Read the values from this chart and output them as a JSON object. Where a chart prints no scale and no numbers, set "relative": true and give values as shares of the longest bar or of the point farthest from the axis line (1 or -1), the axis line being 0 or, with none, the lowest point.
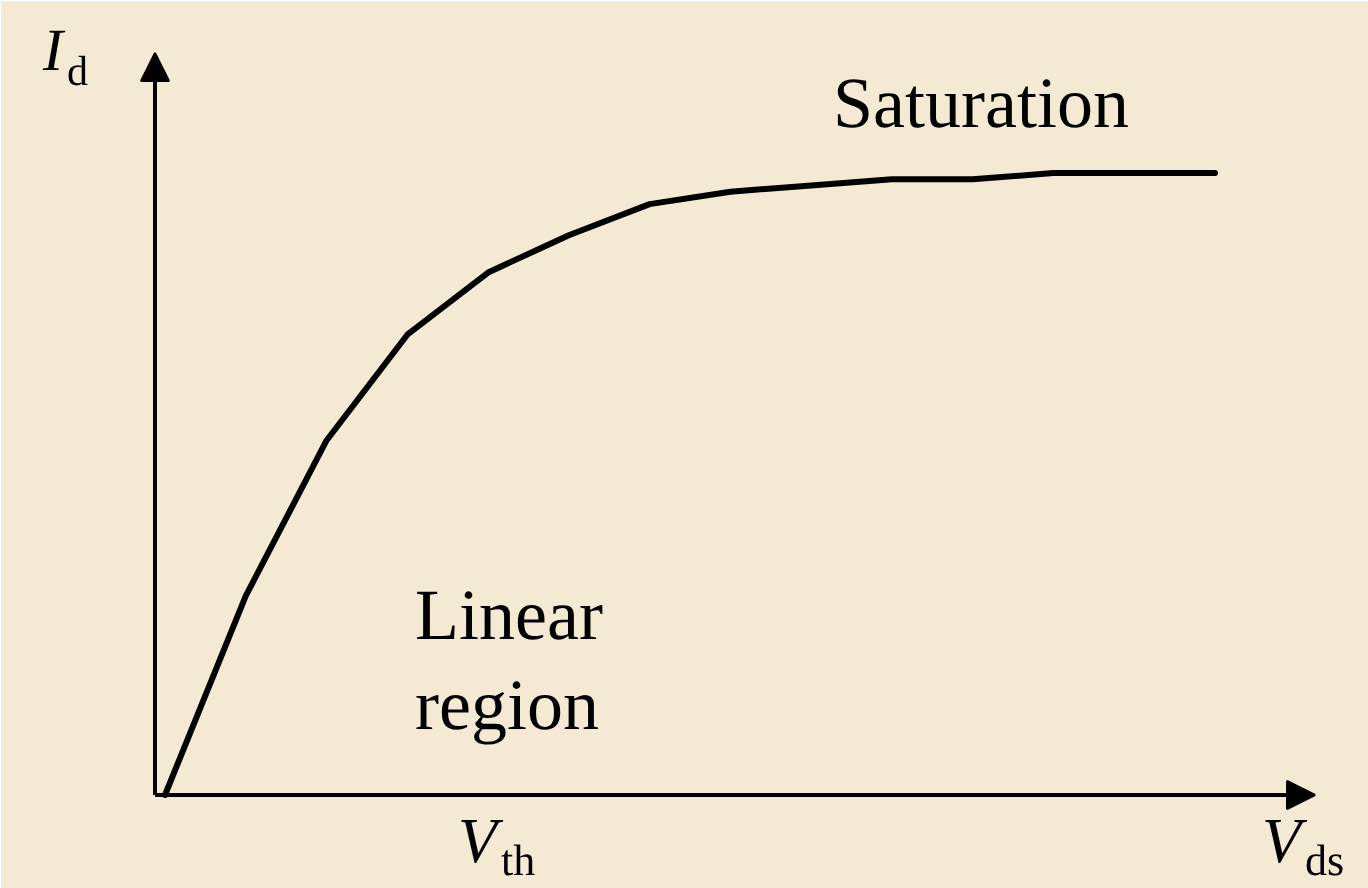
{
  "chart_data": {
    "type": "line",
    "relative": true,
    "xlabel": "V$_{ds}$",
    "ylabel": "I$_{d}$",
    "categories": [
      null,
      null,
      null,
      null,
      null,
      null,
      null,
      null,
      null,
      null,
      null,
      null,
      null,
      null
    ],
    "series": [
      {
        "color": "#000000",
        "values": [
          0,
          0.32,
          0.57,
          0.74,
          0.84,
          0.9,
          0.95,
          0.97,
          0.98,
          0.99,
          0.99,
          1,
          1,
          1
        ]
      }
    ],
    "line_style": "solid",
    "annotations": [
      "Saturation",
      "Linear region",
      "V$_{th}$"
    ]
  }
}
